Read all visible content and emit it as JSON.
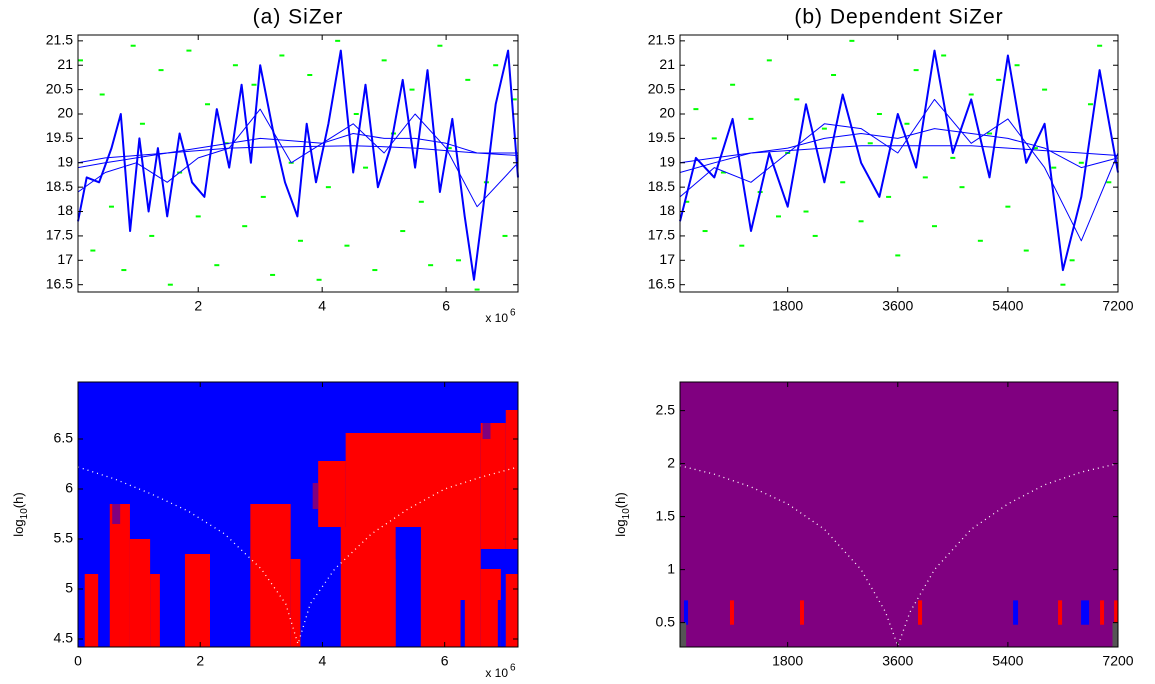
{
  "chart_data": [
    {
      "type": "line",
      "title": "(a) SiZer",
      "xlim": [
        0.06,
        7.16
      ],
      "xticks": [
        2,
        4,
        6
      ],
      "x_multiplier": {
        "base": "x 10",
        "exponent": "6"
      },
      "ylim": [
        16.35,
        21.62
      ],
      "yticks": [
        16.5,
        17,
        17.5,
        18,
        18.5,
        19,
        19.5,
        20,
        20.5,
        21,
        21.5
      ],
      "points": {
        "color": "#00ff00",
        "x": [
          0.1,
          0.3,
          0.45,
          0.6,
          0.8,
          0.95,
          1.1,
          1.25,
          1.4,
          1.55,
          1.7,
          1.85,
          2.0,
          2.15,
          2.3,
          2.45,
          2.6,
          2.75,
          2.9,
          3.05,
          3.2,
          3.35,
          3.5,
          3.65,
          3.8,
          3.95,
          4.1,
          4.25,
          4.4,
          4.55,
          4.7,
          4.85,
          5.0,
          5.15,
          5.3,
          5.45,
          5.6,
          5.75,
          5.9,
          6.05,
          6.2,
          6.35,
          6.5,
          6.65,
          6.8,
          6.95,
          7.1
        ],
        "y": [
          21.1,
          17.2,
          20.4,
          18.1,
          16.8,
          21.4,
          19.8,
          17.5,
          20.9,
          16.5,
          18.8,
          21.3,
          17.9,
          20.2,
          16.9,
          19.4,
          21.0,
          17.7,
          20.6,
          18.3,
          16.7,
          21.2,
          19.0,
          17.4,
          20.8,
          16.6,
          18.5,
          21.5,
          17.3,
          20.0,
          18.9,
          16.8,
          21.1,
          19.6,
          17.6,
          20.5,
          18.2,
          16.9,
          21.4,
          19.3,
          17.0,
          20.7,
          16.4,
          18.6,
          21.0,
          17.5,
          20.3
        ]
      },
      "series": [
        {
          "color": "#0000ff",
          "x": [
            0.06,
            0.2,
            0.4,
            0.6,
            0.75,
            0.9,
            1.05,
            1.2,
            1.35,
            1.5,
            1.7,
            1.9,
            2.1,
            2.3,
            2.5,
            2.7,
            2.85,
            3.0,
            3.2,
            3.4,
            3.6,
            3.75,
            3.9,
            4.1,
            4.3,
            4.5,
            4.7,
            4.9,
            5.1,
            5.3,
            5.5,
            5.7,
            5.9,
            6.1,
            6.3,
            6.45,
            6.6,
            6.8,
            7.0,
            7.16
          ],
          "values": [
            17.8,
            18.7,
            18.6,
            19.3,
            20.0,
            17.6,
            19.5,
            18.0,
            19.3,
            17.9,
            19.6,
            18.6,
            18.3,
            20.1,
            18.9,
            20.6,
            19.0,
            21.0,
            19.7,
            18.6,
            17.9,
            19.8,
            18.6,
            19.8,
            21.3,
            18.8,
            20.6,
            18.5,
            19.3,
            20.7,
            18.9,
            20.9,
            18.4,
            19.9,
            17.9,
            16.6,
            18.1,
            20.2,
            21.3,
            18.7
          ]
        },
        {
          "color": "#0000ff",
          "x": [
            0.06,
            0.5,
            1,
            1.5,
            2,
            2.5,
            3,
            3.5,
            4,
            4.5,
            5,
            5.5,
            6,
            6.5,
            7.16
          ],
          "values": [
            18.4,
            18.8,
            19.0,
            18.6,
            19.1,
            19.3,
            20.1,
            19.0,
            19.4,
            19.8,
            19.2,
            20.0,
            19.3,
            18.1,
            19.0
          ]
        },
        {
          "color": "#0000ff",
          "x": [
            0.06,
            0.5,
            1,
            1.5,
            2,
            2.5,
            3,
            3.5,
            4,
            4.5,
            5,
            5.5,
            6,
            6.5,
            7.16
          ],
          "values": [
            18.9,
            19.0,
            19.1,
            19.2,
            19.3,
            19.4,
            19.5,
            19.45,
            19.4,
            19.6,
            19.5,
            19.5,
            19.4,
            19.2,
            19.2
          ]
        },
        {
          "color": "#0000ff",
          "x": [
            0.06,
            0.5,
            1,
            1.5,
            2,
            2.5,
            3,
            3.5,
            4,
            4.5,
            5,
            5.5,
            6,
            6.5,
            7.16
          ],
          "values": [
            19.0,
            19.1,
            19.15,
            19.2,
            19.25,
            19.3,
            19.32,
            19.33,
            19.34,
            19.35,
            19.33,
            19.3,
            19.25,
            19.2,
            19.15
          ]
        }
      ]
    },
    {
      "type": "line",
      "title": "(b) Dependent SiZer",
      "xlim": [
        40,
        7200
      ],
      "xticks": [
        1800,
        3600,
        5400,
        7200
      ],
      "ylim": [
        16.35,
        21.62
      ],
      "yticks": [
        16.5,
        17,
        17.5,
        18,
        18.5,
        19,
        19.5,
        20,
        20.5,
        21,
        21.5
      ],
      "points": {
        "color": "#00ff00",
        "x": [
          150,
          300,
          450,
          600,
          750,
          900,
          1050,
          1200,
          1350,
          1500,
          1650,
          1800,
          1950,
          2100,
          2250,
          2400,
          2550,
          2700,
          2850,
          3000,
          3150,
          3300,
          3450,
          3600,
          3750,
          3900,
          4050,
          4200,
          4350,
          4500,
          4650,
          4800,
          4950,
          5100,
          5250,
          5400,
          5550,
          5700,
          5850,
          6000,
          6150,
          6300,
          6450,
          6600,
          6750,
          6900,
          7050
        ],
        "y": [
          18.2,
          20.1,
          17.6,
          19.5,
          18.8,
          20.6,
          17.3,
          19.9,
          18.4,
          21.1,
          17.9,
          19.2,
          20.3,
          18.0,
          17.5,
          19.7,
          20.8,
          18.6,
          21.5,
          17.8,
          19.4,
          20.0,
          18.3,
          17.1,
          19.8,
          20.9,
          18.7,
          17.7,
          21.2,
          19.1,
          18.5,
          20.4,
          17.4,
          19.6,
          20.7,
          18.1,
          21.0,
          17.2,
          19.3,
          20.5,
          18.9,
          16.5,
          17.0,
          19.0,
          20.2,
          21.4,
          18.6
        ]
      },
      "series": [
        {
          "color": "#0000ff",
          "x": [
            40,
            300,
            600,
            900,
            1200,
            1500,
            1800,
            2100,
            2400,
            2700,
            3000,
            3300,
            3600,
            3900,
            4200,
            4500,
            4800,
            5100,
            5400,
            5700,
            6000,
            6300,
            6600,
            6900,
            7200
          ],
          "values": [
            17.8,
            19.1,
            18.7,
            19.9,
            17.6,
            19.2,
            18.1,
            20.2,
            18.6,
            20.4,
            19.0,
            18.3,
            20.0,
            18.9,
            21.3,
            19.2,
            20.3,
            18.7,
            21.2,
            19.0,
            19.8,
            16.8,
            18.3,
            20.9,
            18.8
          ]
        },
        {
          "color": "#0000ff",
          "x": [
            40,
            600,
            1200,
            1800,
            2400,
            3000,
            3600,
            4200,
            4800,
            5400,
            6000,
            6600,
            7200
          ],
          "values": [
            18.3,
            18.9,
            18.6,
            19.2,
            19.8,
            19.7,
            19.2,
            20.3,
            19.4,
            19.9,
            18.9,
            17.4,
            19.2
          ]
        },
        {
          "color": "#0000ff",
          "x": [
            40,
            600,
            1200,
            1800,
            2400,
            3000,
            3600,
            4200,
            4800,
            5400,
            6000,
            6600,
            7200
          ],
          "values": [
            18.8,
            19.0,
            19.2,
            19.3,
            19.5,
            19.6,
            19.5,
            19.7,
            19.6,
            19.5,
            19.3,
            18.9,
            19.1
          ]
        },
        {
          "color": "#0000ff",
          "x": [
            40,
            600,
            1200,
            1800,
            2400,
            3000,
            3600,
            4200,
            4800,
            5400,
            6000,
            6600,
            7200
          ],
          "values": [
            19.0,
            19.1,
            19.2,
            19.25,
            19.3,
            19.35,
            19.35,
            19.35,
            19.35,
            19.3,
            19.25,
            19.2,
            19.15
          ]
        }
      ]
    },
    {
      "type": "heatmap",
      "background": "#0000ff",
      "xlim": [
        0,
        7.2
      ],
      "xticks": [
        0,
        2,
        4,
        6
      ],
      "x_multiplier": {
        "base": "x 10",
        "exponent": "6"
      },
      "ylim": [
        4.42,
        7.07
      ],
      "yticks": [
        4.5,
        5,
        5.5,
        6,
        6.5
      ],
      "ylabel": {
        "base": "log",
        "sub": "10",
        "rest": "(h)"
      },
      "cells": [
        {
          "x": [
            0.11,
            0.33
          ],
          "h": [
            4.42,
            5.15
          ],
          "color": "#ff0000"
        },
        {
          "x": [
            0.52,
            0.85
          ],
          "h": [
            4.42,
            5.85
          ],
          "color": "#ff0000"
        },
        {
          "x": [
            0.85,
            1.18
          ],
          "h": [
            4.42,
            5.5
          ],
          "color": "#ff0000"
        },
        {
          "x": [
            1.18,
            1.34
          ],
          "h": [
            4.42,
            5.15
          ],
          "color": "#ff0000"
        },
        {
          "x": [
            1.75,
            2.16
          ],
          "h": [
            4.42,
            5.35
          ],
          "color": "#ff0000"
        },
        {
          "x": [
            2.82,
            3.48
          ],
          "h": [
            4.42,
            5.85
          ],
          "color": "#ff0000"
        },
        {
          "x": [
            3.48,
            3.64
          ],
          "h": [
            4.42,
            5.3
          ],
          "color": "#ff0000"
        },
        {
          "x": [
            3.93,
            4.38
          ],
          "h": [
            5.62,
            6.28
          ],
          "color": "#ff0000"
        },
        {
          "x": [
            4.38,
            6.59
          ],
          "h": [
            5.62,
            6.56
          ],
          "color": "#ff0000"
        },
        {
          "x": [
            6.59,
            7.0
          ],
          "h": [
            5.4,
            6.66
          ],
          "color": "#ff0000"
        },
        {
          "x": [
            7.0,
            7.2
          ],
          "h": [
            5.4,
            6.79
          ],
          "color": "#ff0000"
        },
        {
          "x": [
            4.3,
            5.2
          ],
          "h": [
            4.42,
            5.62
          ],
          "color": "#ff0000"
        },
        {
          "x": [
            5.61,
            6.59
          ],
          "h": [
            4.42,
            5.62
          ],
          "color": "#ff0000"
        },
        {
          "x": [
            6.59,
            6.92
          ],
          "h": [
            4.42,
            5.2
          ],
          "color": "#ff0000"
        },
        {
          "x": [
            7.0,
            7.2
          ],
          "h": [
            4.42,
            5.15
          ],
          "color": "#ff0000"
        },
        {
          "x": [
            0.56,
            0.69
          ],
          "h": [
            5.65,
            5.85
          ],
          "color": "#7f007f"
        },
        {
          "x": [
            3.84,
            3.93
          ],
          "h": [
            5.8,
            6.06
          ],
          "color": "#7f007f"
        },
        {
          "x": [
            6.62,
            6.75
          ],
          "h": [
            6.5,
            6.66
          ],
          "color": "#7f007f"
        },
        {
          "x": [
            0.36,
            0.43
          ],
          "h": [
            4.42,
            4.89
          ],
          "color": "#0000ff"
        },
        {
          "x": [
            1.59,
            1.66
          ],
          "h": [
            4.42,
            4.89
          ],
          "color": "#0000ff"
        },
        {
          "x": [
            2.52,
            2.6
          ],
          "h": [
            4.42,
            4.89
          ],
          "color": "#0000ff"
        },
        {
          "x": [
            4.13,
            4.2
          ],
          "h": [
            4.42,
            4.89
          ],
          "color": "#0000ff"
        },
        {
          "x": [
            5.2,
            5.61
          ],
          "h": [
            5.3,
            5.62
          ],
          "color": "#0000ff"
        },
        {
          "x": [
            6.26,
            6.33
          ],
          "h": [
            4.42,
            4.89
          ],
          "color": "#0000ff"
        },
        {
          "x": [
            6.87,
            6.92
          ],
          "h": [
            4.42,
            4.89
          ],
          "color": "#0000ff"
        }
      ],
      "reference": {
        "color": "#ffffff",
        "x": [
          0,
          0.6,
          1.2,
          1.8,
          2.4,
          3.0,
          3.4,
          3.6,
          3.8,
          4.2,
          4.8,
          5.4,
          6.0,
          6.6,
          7.2
        ],
        "values": [
          6.22,
          6.1,
          5.95,
          5.78,
          5.55,
          5.2,
          4.85,
          4.45,
          4.85,
          5.2,
          5.55,
          5.8,
          6.0,
          6.12,
          6.22
        ]
      }
    },
    {
      "type": "heatmap",
      "background": "#800080",
      "xlim": [
        40,
        7200
      ],
      "xticks": [
        1800,
        3600,
        5400,
        7200
      ],
      "ylim": [
        0.27,
        2.77
      ],
      "yticks": [
        0.5,
        1,
        1.5,
        2,
        2.5
      ],
      "ylabel": {
        "base": "log",
        "sub": "10",
        "rest": "(h)"
      },
      "cells": [
        {
          "x": [
            105,
            171
          ],
          "h": [
            0.48,
            0.71
          ],
          "color": "#0000ff"
        },
        {
          "x": [
            857,
            923
          ],
          "h": [
            0.48,
            0.71
          ],
          "color": "#ff0000"
        },
        {
          "x": [
            2002,
            2067
          ],
          "h": [
            0.48,
            0.71
          ],
          "color": "#ff0000"
        },
        {
          "x": [
            3931,
            3997
          ],
          "h": [
            0.48,
            0.71
          ],
          "color": "#ff0000"
        },
        {
          "x": [
            5485,
            5566
          ],
          "h": [
            0.48,
            0.71
          ],
          "color": "#0000ff"
        },
        {
          "x": [
            6220,
            6286
          ],
          "h": [
            0.48,
            0.71
          ],
          "color": "#ff0000"
        },
        {
          "x": [
            6596,
            6727
          ],
          "h": [
            0.48,
            0.71
          ],
          "color": "#0000ff"
        },
        {
          "x": [
            6907,
            6972
          ],
          "h": [
            0.48,
            0.71
          ],
          "color": "#ff0000"
        },
        {
          "x": [
            7136,
            7200
          ],
          "h": [
            0.48,
            0.71
          ],
          "color": "#ff0000"
        },
        {
          "x": [
            40,
            140
          ],
          "h": [
            0.27,
            0.5
          ],
          "color": "#555555"
        },
        {
          "x": [
            7110,
            7200
          ],
          "h": [
            0.27,
            0.5
          ],
          "color": "#555555"
        }
      ],
      "reference": {
        "color": "#ffffff",
        "x": [
          40,
          600,
          1200,
          1800,
          2400,
          3000,
          3400,
          3600,
          3800,
          4200,
          4800,
          5400,
          6000,
          6600,
          7200
        ],
        "values": [
          1.98,
          1.9,
          1.78,
          1.62,
          1.38,
          1.0,
          0.6,
          0.28,
          0.6,
          1.0,
          1.38,
          1.62,
          1.8,
          1.92,
          2.0
        ]
      }
    }
  ]
}
